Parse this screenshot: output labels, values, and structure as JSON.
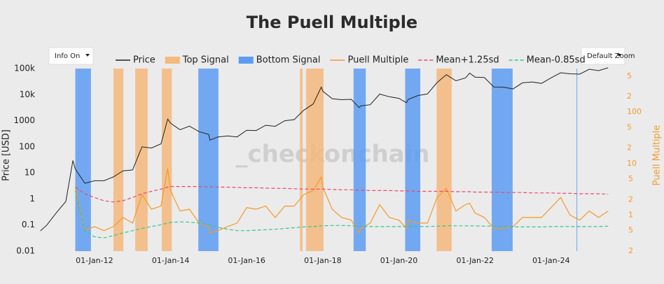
{
  "chart_data": {
    "type": "line",
    "title": "The Puell Multiple",
    "watermark": "_checkonchain",
    "controls": [
      "Info On",
      "Default Zoom"
    ],
    "y_label": "Price [USD]",
    "y2_label": "Puell Multiple",
    "ylog": true,
    "y2log": true,
    "xlim": [
      "2010-07-13",
      "2025-10-22"
    ],
    "xticks": [
      {
        "value": "2012-01-01",
        "label": "01-Jan-12"
      },
      {
        "value": "2014-01-01",
        "label": "01-Jan-14"
      },
      {
        "value": "2016-01-01",
        "label": "01-Jan-16"
      },
      {
        "value": "2018-01-01",
        "label": "01-Jan-18"
      },
      {
        "value": "2020-01-01",
        "label": "01-Jan-20"
      },
      {
        "value": "2022-01-01",
        "label": "01-Jan-22"
      },
      {
        "value": "2024-01-01",
        "label": "01-Jan-24"
      }
    ],
    "ylim": [
      0.01,
      100000
    ],
    "yticks": [
      0.01,
      0.1,
      1,
      10,
      100,
      1000,
      {
        "value": 10000,
        "label": "10k"
      },
      {
        "value": 100000,
        "label": "100k"
      }
    ],
    "y2lim": [
      0.2,
      700
    ],
    "y2ticks": [
      {
        "value": 0.2,
        "label": "2"
      },
      {
        "value": 0.5,
        "label": "5"
      },
      1,
      {
        "value": 2,
        "label": "2"
      },
      {
        "value": 5,
        "label": "5"
      },
      10,
      {
        "value": 20,
        "label": "2"
      },
      {
        "value": 50,
        "label": "5"
      },
      100,
      {
        "value": 200,
        "label": "2"
      },
      {
        "value": 500,
        "label": "5"
      }
    ],
    "x": [
      "2010-08-01",
      "2010-10-01",
      "2011-01-01",
      "2011-04-01",
      "2011-06-08",
      "2011-07-01",
      "2011-10-01",
      "2012-01-01",
      "2012-04-01",
      "2012-07-01",
      "2012-10-01",
      "2013-01-01",
      "2013-04-01",
      "2013-07-01",
      "2013-10-01",
      "2013-12-04",
      "2014-01-01",
      "2014-04-01",
      "2014-07-01",
      "2014-10-01",
      "2015-01-01",
      "2015-01-14",
      "2015-04-01",
      "2015-07-01",
      "2015-10-01",
      "2016-01-01",
      "2016-04-01",
      "2016-07-01",
      "2016-10-01",
      "2017-01-01",
      "2017-04-01",
      "2017-07-01",
      "2017-10-01",
      "2017-12-17",
      "2018-01-01",
      "2018-04-01",
      "2018-07-01",
      "2018-10-01",
      "2018-12-15",
      "2019-01-01",
      "2019-04-01",
      "2019-07-01",
      "2019-10-01",
      "2020-01-01",
      "2020-03-13",
      "2020-04-01",
      "2020-07-01",
      "2020-10-01",
      "2021-01-01",
      "2021-04-01",
      "2021-07-01",
      "2021-10-01",
      "2021-11-10",
      "2022-01-01",
      "2022-04-01",
      "2022-07-01",
      "2022-10-01",
      "2023-01-01",
      "2023-04-01",
      "2023-07-01",
      "2023-10-01",
      "2024-01-01",
      "2024-04-01",
      "2024-07-01",
      "2024-10-01",
      "2025-01-01",
      "2025-04-01",
      "2025-07-01"
    ],
    "series": [
      {
        "name": "Price",
        "style": "line",
        "axis": "y",
        "color": "#222222",
        "values": [
          0.06,
          0.1,
          0.3,
          0.8,
          30,
          14,
          4,
          5,
          5,
          7,
          12,
          13,
          100,
          90,
          130,
          1150,
          800,
          450,
          620,
          380,
          300,
          180,
          240,
          260,
          240,
          430,
          420,
          670,
          610,
          1000,
          1100,
          2500,
          4400,
          19500,
          13500,
          7000,
          6400,
          6600,
          3200,
          3700,
          4100,
          10500,
          8300,
          7200,
          4900,
          6600,
          9200,
          10600,
          29000,
          58000,
          34000,
          44000,
          67000,
          47000,
          45000,
          19500,
          19400,
          16600,
          28400,
          30500,
          27000,
          44000,
          69000,
          63000,
          61000,
          94000,
          83000,
          107000
        ]
      },
      {
        "name": "Top Signal",
        "style": "band",
        "color": "#f5b97c",
        "ranges": [
          {
            "start": "2012-07-01",
            "end": "2012-10-05"
          },
          {
            "start": "2013-01-26",
            "end": "2013-05-26"
          },
          {
            "start": "2013-10-08",
            "end": "2014-01-12"
          },
          {
            "start": "2017-05-26",
            "end": "2017-06-21"
          },
          {
            "start": "2017-07-24",
            "end": "2018-01-08"
          },
          {
            "start": "2020-12-28",
            "end": "2021-05-22"
          }
        ]
      },
      {
        "name": "Bottom Signal",
        "style": "band",
        "color": "#5d9cf2",
        "ranges": [
          {
            "start": "2011-07-01",
            "end": "2011-11-28"
          },
          {
            "start": "2014-09-24",
            "end": "2015-04-05"
          },
          {
            "start": "2018-10-23",
            "end": "2019-02-17"
          },
          {
            "start": "2020-03-01",
            "end": "2020-07-24"
          },
          {
            "start": "2022-06-10",
            "end": "2022-12-28"
          },
          {
            "start": "2024-09-01",
            "end": "2024-09-08"
          }
        ]
      },
      {
        "name": "Puell Multiple",
        "style": "line",
        "axis": "y2",
        "color": "#f39a2b",
        "values": [
          null,
          null,
          null,
          null,
          null,
          3.5,
          0.5,
          0.6,
          0.5,
          0.6,
          0.9,
          0.7,
          2.5,
          1.3,
          1.5,
          8,
          3,
          1.2,
          1.3,
          0.7,
          0.6,
          0.45,
          0.5,
          0.6,
          0.7,
          1.4,
          1.3,
          1.5,
          0.9,
          1.5,
          1.5,
          2.5,
          3,
          5.5,
          3.5,
          1.3,
          0.9,
          0.8,
          0.45,
          0.55,
          0.7,
          1.6,
          0.9,
          0.8,
          0.55,
          0.8,
          0.7,
          0.7,
          2.2,
          3.3,
          1.2,
          1.6,
          1.7,
          1.1,
          0.9,
          0.55,
          0.55,
          0.6,
          0.9,
          0.9,
          0.9,
          1.4,
          2.2,
          1.0,
          0.8,
          1.2,
          0.9,
          1.2
        ]
      },
      {
        "name": "Mean+1.25sd",
        "style": "dashed",
        "axis": "y2",
        "color": "#e8496d",
        "values": [
          null,
          null,
          null,
          null,
          null,
          3.5,
          2.6,
          2.2,
          1.9,
          1.8,
          1.9,
          2.2,
          2.6,
          2.9,
          3.2,
          3.5,
          3.6,
          3.6,
          3.6,
          3.6,
          3.55,
          3.55,
          3.5,
          3.5,
          3.45,
          3.4,
          3.4,
          3.35,
          3.3,
          3.3,
          3.25,
          3.2,
          3.2,
          3.2,
          3.2,
          3.15,
          3.1,
          3.1,
          3.05,
          3.05,
          3.0,
          3.0,
          3.0,
          2.95,
          2.95,
          2.95,
          2.9,
          2.9,
          2.9,
          2.9,
          2.85,
          2.85,
          2.85,
          2.8,
          2.8,
          2.8,
          2.75,
          2.75,
          2.75,
          2.7,
          2.7,
          2.7,
          2.65,
          2.65,
          2.6,
          2.6,
          2.6,
          2.55
        ]
      },
      {
        "name": "Mean-0.85sd",
        "style": "dashed",
        "axis": "y2",
        "color": "#35c68a",
        "values": [
          null,
          null,
          null,
          null,
          null,
          3.0,
          0.5,
          0.38,
          0.36,
          0.4,
          0.45,
          0.5,
          0.55,
          0.6,
          0.65,
          0.7,
          0.72,
          0.74,
          0.73,
          0.7,
          0.65,
          0.64,
          0.58,
          0.53,
          0.5,
          0.5,
          0.51,
          0.52,
          0.53,
          0.55,
          0.57,
          0.59,
          0.6,
          0.62,
          0.62,
          0.63,
          0.63,
          0.62,
          0.61,
          0.61,
          0.6,
          0.6,
          0.6,
          0.6,
          0.6,
          0.6,
          0.6,
          0.6,
          0.61,
          0.62,
          0.62,
          0.62,
          0.62,
          0.62,
          0.61,
          0.61,
          0.6,
          0.59,
          0.59,
          0.59,
          0.59,
          0.6,
          0.6,
          0.6,
          0.6,
          0.6,
          0.6,
          0.61
        ]
      }
    ]
  }
}
